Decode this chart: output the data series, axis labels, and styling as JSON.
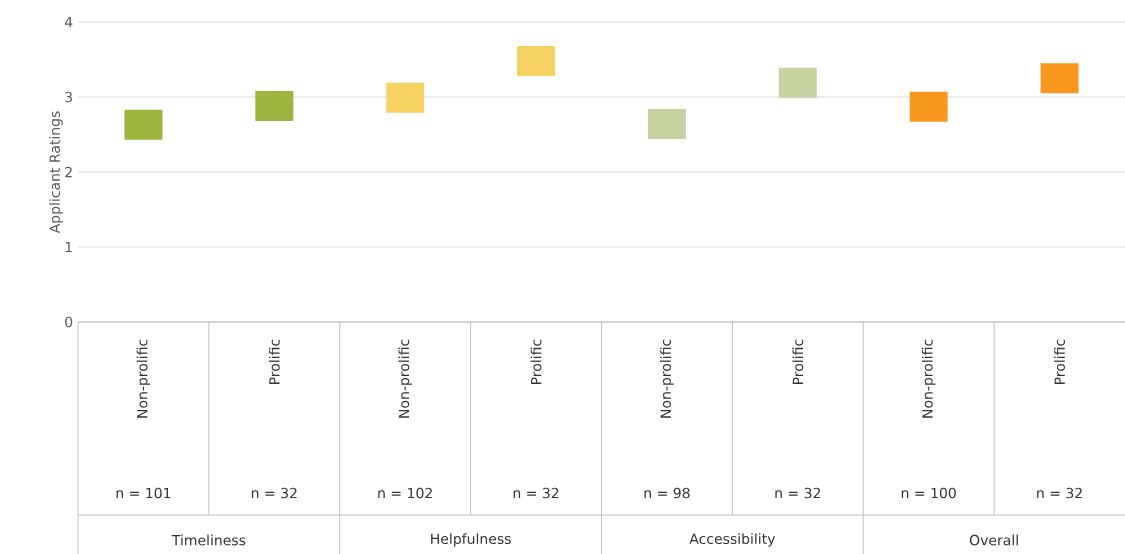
{
  "chart_data": {
    "type": "bar",
    "ylabel": "Applicant Ratings",
    "categories": [
      "Non-prolific",
      "Prolific",
      "Non-prolific",
      "Prolific",
      "Non-prolific",
      "Prolific",
      "Non-prolific",
      "Prolific"
    ],
    "base": [
      2.43,
      2.68,
      2.79,
      3.28,
      2.44,
      2.99,
      2.67,
      3.05
    ],
    "values": [
      0.4,
      0.4,
      0.4,
      0.4,
      0.4,
      0.4,
      0.4,
      0.4
    ],
    "colors": [
      "#9bb53f",
      "#9bb53f",
      "#f6d262",
      "#f6d262",
      "#c6d3a0",
      "#c6d3a0",
      "#f7981d",
      "#f7981d"
    ],
    "ylim": [
      0,
      4
    ],
    "yticks": [
      0,
      1,
      2,
      3,
      4
    ],
    "grid": "y",
    "annotations": [
      "n = 101",
      "n = 32",
      "n = 102",
      "n = 32",
      "n = 98",
      "n = 32",
      "n = 100",
      "n = 32",
      "Timeliness",
      "Helpfulness",
      "Accessibility",
      "Overall"
    ]
  }
}
